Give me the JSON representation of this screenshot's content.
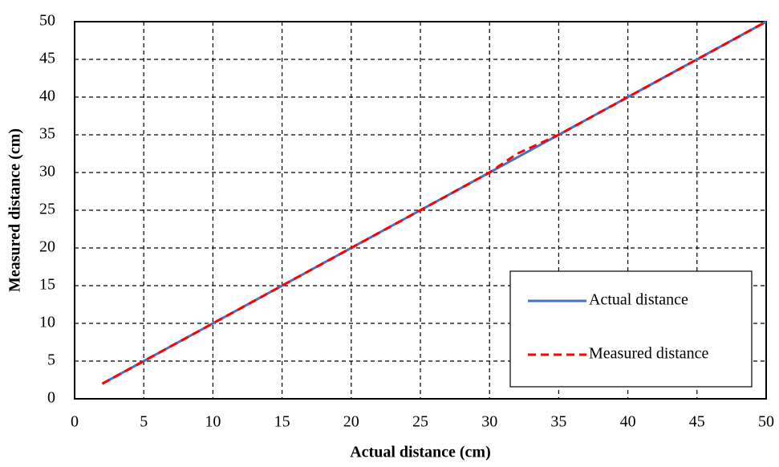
{
  "chart_data": {
    "type": "line",
    "x_label": "Actual distance (cm)",
    "y_label": "Measured distance (cm)",
    "x": [
      2,
      5,
      10,
      15,
      20,
      25,
      30,
      32,
      35,
      40,
      45,
      50
    ],
    "series": [
      {
        "name": "Actual distance",
        "color": "#4472c4",
        "values": [
          2,
          5,
          10,
          15,
          20,
          25,
          30,
          32,
          35,
          40,
          45,
          50
        ]
      },
      {
        "name": "Measured distance",
        "color": "#ff0000",
        "values": [
          2,
          5,
          10,
          15,
          20,
          25,
          30,
          32.5,
          35,
          40,
          45,
          50
        ]
      }
    ],
    "xlim": [
      0,
      50
    ],
    "ylim": [
      0,
      50
    ],
    "xticks": [
      0,
      5,
      10,
      15,
      20,
      25,
      30,
      35,
      40,
      45,
      50
    ],
    "yticks": [
      0,
      5,
      10,
      15,
      20,
      25,
      30,
      35,
      40,
      45,
      50
    ],
    "grid": true,
    "legend": "lower right"
  }
}
